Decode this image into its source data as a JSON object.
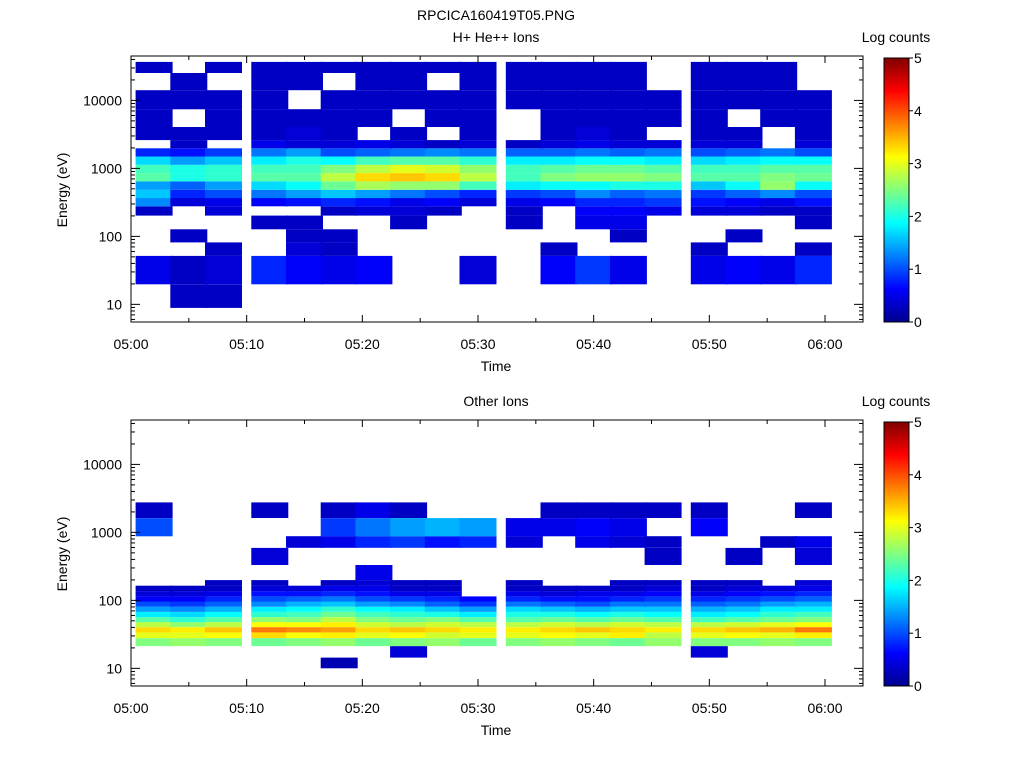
{
  "figure_title": "RPCICA160419T05.PNG",
  "colormap_stops": [
    "#00008f",
    "#0000ff",
    "#0080ff",
    "#00ffff",
    "#80ff80",
    "#ffff00",
    "#ff8000",
    "#ff0000",
    "#800000"
  ],
  "chart_data": [
    {
      "type": "heatmap",
      "title": "H+ He++ Ions",
      "xlabel": "Time",
      "ylabel": "Energy (eV)",
      "x_ticks": [
        "05:00",
        "05:10",
        "05:20",
        "05:30",
        "05:40",
        "05:50",
        "06:00"
      ],
      "x_range": [
        "05:00",
        "06:03"
      ],
      "y_scale": "log",
      "y_range": [
        5.5,
        45000
      ],
      "y_ticks": [
        10,
        100,
        1000,
        10000
      ],
      "colorbar_label": "Log counts",
      "colorbar_range": [
        0,
        5
      ],
      "colorbar_ticks": [
        0,
        1,
        2,
        3,
        4,
        5
      ],
      "time_bins": [
        "05:02",
        "05:05",
        "05:08",
        "05:12",
        "05:15",
        "05:18",
        "05:21",
        "05:24",
        "05:27",
        "05:30",
        "05:34",
        "05:37",
        "05:40",
        "05:43",
        "05:46",
        "05:50",
        "05:53",
        "05:56",
        "05:59"
      ],
      "energy_bins": [
        10.2,
        38,
        70,
        95,
        170,
        240,
        320,
        420,
        560,
        740,
        980,
        1300,
        1720,
        2270,
        3000,
        5500,
        10000,
        20000,
        32000
      ],
      "counts": [
        [
          null,
          0.3,
          0.3,
          null,
          null,
          null,
          null,
          null,
          null,
          null,
          null,
          null,
          null,
          null,
          null,
          null,
          null,
          null,
          null
        ],
        [
          0.5,
          0.3,
          0.4,
          0.8,
          0.6,
          0.5,
          0.6,
          null,
          null,
          0.4,
          null,
          0.6,
          0.9,
          0.5,
          null,
          0.5,
          0.6,
          0.5,
          0.8
        ],
        [
          null,
          null,
          0.3,
          null,
          0.4,
          0.3,
          null,
          null,
          null,
          null,
          null,
          0.3,
          null,
          null,
          null,
          0.3,
          null,
          null,
          0.3
        ],
        [
          null,
          0.3,
          null,
          null,
          0.3,
          0.3,
          null,
          null,
          null,
          null,
          null,
          null,
          null,
          0.3,
          null,
          null,
          0.3,
          null,
          null
        ],
        [
          null,
          null,
          null,
          0.3,
          0.3,
          null,
          null,
          0.3,
          null,
          null,
          0.3,
          null,
          0.5,
          0.5,
          null,
          null,
          null,
          null,
          0.3
        ],
        [
          0.3,
          null,
          0.4,
          null,
          null,
          0.3,
          0.4,
          0.4,
          0.3,
          null,
          0.3,
          null,
          0.6,
          0.6,
          0.5,
          0.4,
          0.4,
          0.3,
          0.3
        ],
        [
          1.3,
          0.4,
          0.5,
          0.6,
          0.7,
          0.8,
          0.7,
          0.5,
          0.6,
          0.4,
          0.5,
          0.6,
          0.8,
          0.8,
          0.9,
          0.7,
          0.6,
          0.5,
          0.7
        ],
        [
          1.6,
          0.8,
          1.0,
          1.2,
          1.4,
          1.6,
          1.4,
          1.2,
          1.0,
          0.8,
          0.9,
          1.0,
          1.3,
          1.1,
          1.2,
          0.9,
          1.1,
          1.3,
          1.0
        ],
        [
          1.4,
          1.1,
          1.4,
          1.7,
          1.9,
          2.4,
          2.7,
          2.6,
          2.6,
          2.2,
          1.8,
          1.9,
          1.9,
          2.0,
          2.0,
          1.6,
          1.9,
          2.6,
          1.9
        ],
        [
          2.3,
          2.0,
          2.1,
          2.3,
          2.3,
          2.8,
          3.3,
          3.4,
          3.3,
          2.8,
          2.2,
          2.5,
          2.6,
          2.6,
          2.5,
          2.3,
          2.3,
          2.5,
          2.4
        ],
        [
          2.2,
          2.0,
          2.1,
          2.2,
          2.2,
          2.5,
          2.8,
          3.0,
          2.9,
          2.6,
          2.2,
          2.3,
          2.4,
          2.4,
          2.3,
          2.2,
          2.2,
          2.3,
          2.3
        ],
        [
          1.7,
          1.4,
          1.6,
          1.8,
          2.0,
          1.9,
          2.2,
          2.3,
          2.3,
          2.1,
          1.8,
          1.8,
          1.9,
          1.9,
          1.8,
          1.7,
          1.8,
          1.9,
          1.9
        ],
        [
          0.8,
          0.7,
          0.9,
          1.2,
          1.4,
          1.0,
          1.1,
          1.2,
          1.3,
          1.2,
          1.1,
          1.1,
          1.2,
          1.1,
          1.2,
          1.0,
          1.1,
          1.2,
          1.0
        ],
        [
          null,
          0.3,
          null,
          0.5,
          0.4,
          0.4,
          0.5,
          0.4,
          0.3,
          0.4,
          0.3,
          0.4,
          0.5,
          0.4,
          0.4,
          0.4,
          0.4,
          null,
          0.4
        ],
        [
          0.3,
          0.3,
          0.3,
          0.3,
          0.4,
          0.3,
          null,
          0.3,
          null,
          0.3,
          null,
          0.3,
          0.4,
          0.3,
          null,
          0.3,
          0.3,
          null,
          0.3
        ],
        [
          0.3,
          null,
          0.3,
          0.3,
          0.3,
          0.3,
          0.3,
          null,
          0.3,
          0.3,
          null,
          0.3,
          0.3,
          0.3,
          0.3,
          0.3,
          null,
          0.3,
          0.3
        ],
        [
          0.3,
          0.3,
          0.3,
          0.3,
          null,
          0.3,
          0.3,
          0.3,
          0.3,
          0.3,
          0.3,
          0.3,
          0.3,
          0.3,
          0.3,
          0.3,
          0.3,
          0.3,
          0.3
        ],
        [
          null,
          0.3,
          null,
          0.3,
          0.3,
          null,
          0.3,
          0.3,
          null,
          0.3,
          0.3,
          0.3,
          0.3,
          0.3,
          null,
          0.3,
          0.3,
          0.3,
          null
        ],
        [
          0.3,
          null,
          0.3,
          0.3,
          0.3,
          0.3,
          0.3,
          0.3,
          0.3,
          0.3,
          0.3,
          0.3,
          0.3,
          0.3,
          null,
          0.3,
          0.3,
          0.3,
          null
        ]
      ]
    },
    {
      "type": "heatmap",
      "title": "Other Ions",
      "xlabel": "Time",
      "ylabel": "Energy (eV)",
      "x_ticks": [
        "05:00",
        "05:10",
        "05:20",
        "05:30",
        "05:40",
        "05:50",
        "06:00"
      ],
      "x_range": [
        "05:00",
        "06:03"
      ],
      "y_scale": "log",
      "y_range": [
        5.5,
        45000
      ],
      "y_ticks": [
        10,
        100,
        1000,
        10000
      ],
      "colorbar_label": "Log counts",
      "colorbar_range": [
        0,
        5
      ],
      "colorbar_ticks": [
        0,
        1,
        2,
        3,
        4,
        5
      ],
      "time_bins": [
        "05:02",
        "05:05",
        "05:08",
        "05:12",
        "05:15",
        "05:18",
        "05:21",
        "05:24",
        "05:27",
        "05:30",
        "05:34",
        "05:37",
        "05:40",
        "05:43",
        "05:46",
        "05:50",
        "05:53",
        "05:56",
        "05:59"
      ],
      "energy_bins": [
        11.5,
        18,
        25,
        31,
        37,
        44,
        52,
        62,
        74,
        88,
        105,
        125,
        150,
        180,
        220,
        500,
        700,
        1100,
        2400
      ],
      "counts": [
        [
          null,
          null,
          null,
          null,
          null,
          0.2,
          null,
          null,
          null,
          null,
          null,
          null,
          null,
          null,
          null,
          null,
          null,
          null,
          null
        ],
        [
          null,
          null,
          null,
          null,
          null,
          null,
          null,
          0.4,
          null,
          null,
          null,
          null,
          null,
          null,
          null,
          0.4,
          null,
          null,
          null
        ],
        [
          2.5,
          2.6,
          2.5,
          2.4,
          2.5,
          2.6,
          2.4,
          2.5,
          2.6,
          2.4,
          2.5,
          2.6,
          2.5,
          2.4,
          2.6,
          2.5,
          2.5,
          2.6,
          2.5
        ],
        [
          3.0,
          3.0,
          3.1,
          3.3,
          3.1,
          3.2,
          3.0,
          3.1,
          2.9,
          3.0,
          3.0,
          3.1,
          3.0,
          3.2,
          2.8,
          3.0,
          3.1,
          3.0,
          3.2
        ],
        [
          3.3,
          3.2,
          3.4,
          3.8,
          3.7,
          3.6,
          3.3,
          3.4,
          3.3,
          3.2,
          3.2,
          3.3,
          3.4,
          3.3,
          3.2,
          3.3,
          3.4,
          3.5,
          3.8
        ],
        [
          2.8,
          2.6,
          2.8,
          3.1,
          3.1,
          3.2,
          2.9,
          2.8,
          2.9,
          2.8,
          2.8,
          2.9,
          2.8,
          2.9,
          2.8,
          2.8,
          2.9,
          3.0,
          3.1
        ],
        [
          2.3,
          2.1,
          2.3,
          2.6,
          2.5,
          2.8,
          2.5,
          2.4,
          2.5,
          2.3,
          2.3,
          2.4,
          2.3,
          2.4,
          2.3,
          2.2,
          2.3,
          2.4,
          2.5
        ],
        [
          1.8,
          1.7,
          1.9,
          2.1,
          2.2,
          2.4,
          2.2,
          2.1,
          2.0,
          1.8,
          2.0,
          2.0,
          1.9,
          2.0,
          1.9,
          1.8,
          1.9,
          2.1,
          2.2
        ],
        [
          1.4,
          1.3,
          1.5,
          1.8,
          1.9,
          2.1,
          1.9,
          1.8,
          1.6,
          1.4,
          1.7,
          1.6,
          1.5,
          1.6,
          1.6,
          1.5,
          1.6,
          1.8,
          1.8
        ],
        [
          1.0,
          0.9,
          1.1,
          1.3,
          1.5,
          1.6,
          1.4,
          1.3,
          1.1,
          0.9,
          1.2,
          1.1,
          1.0,
          1.2,
          1.2,
          1.1,
          1.2,
          1.4,
          1.5
        ],
        [
          0.6,
          0.6,
          0.8,
          1.0,
          1.1,
          1.2,
          1.0,
          0.9,
          0.8,
          0.6,
          0.8,
          0.7,
          0.7,
          0.8,
          0.9,
          0.8,
          0.9,
          1.0,
          1.1
        ],
        [
          0.4,
          0.4,
          0.5,
          0.7,
          0.7,
          0.8,
          0.7,
          0.5,
          0.5,
          null,
          0.5,
          0.4,
          0.5,
          0.5,
          0.6,
          0.5,
          0.6,
          0.7,
          0.8
        ],
        [
          0.3,
          0.3,
          0.3,
          0.4,
          0.4,
          0.5,
          0.5,
          0.3,
          0.3,
          null,
          0.3,
          0.3,
          0.3,
          0.3,
          0.4,
          0.3,
          0.4,
          0.4,
          0.5
        ],
        [
          null,
          null,
          0.3,
          0.3,
          null,
          0.3,
          0.4,
          0.3,
          0.3,
          null,
          0.3,
          null,
          null,
          0.3,
          0.3,
          0.3,
          0.3,
          null,
          0.4
        ],
        [
          null,
          null,
          null,
          null,
          null,
          null,
          0.5,
          null,
          null,
          null,
          null,
          null,
          null,
          null,
          null,
          null,
          null,
          null,
          null
        ],
        [
          null,
          null,
          null,
          0.4,
          null,
          null,
          null,
          null,
          null,
          null,
          null,
          null,
          null,
          null,
          0.3,
          null,
          0.3,
          null,
          0.4
        ],
        [
          null,
          null,
          null,
          null,
          0.4,
          0.5,
          0.8,
          0.9,
          0.7,
          0.8,
          0.4,
          null,
          0.5,
          0.4,
          0.3,
          null,
          null,
          0.3,
          0.5
        ],
        [
          1.0,
          null,
          null,
          null,
          null,
          0.9,
          1.2,
          1.4,
          1.5,
          1.4,
          0.5,
          0.5,
          0.6,
          0.5,
          null,
          0.6,
          null,
          null,
          null
        ],
        [
          0.3,
          null,
          null,
          0.3,
          null,
          0.3,
          0.5,
          0.3,
          null,
          null,
          null,
          0.3,
          0.3,
          0.3,
          0.3,
          0.3,
          null,
          null,
          0.3
        ]
      ]
    }
  ]
}
